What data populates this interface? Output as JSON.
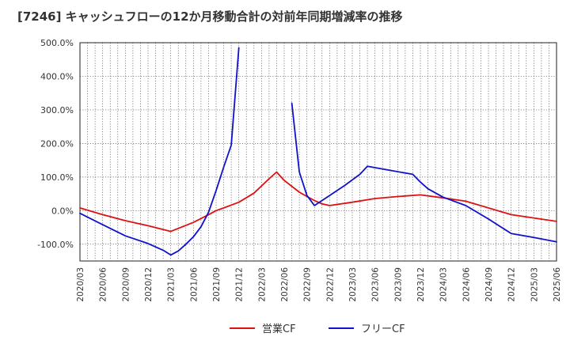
{
  "chart_data": {
    "type": "line",
    "title": "[7246]  キャッシュフローの12か月移動合計の対前年同期増減率の推移",
    "xlabel": "",
    "ylabel": "",
    "ylim": [
      -150,
      500
    ],
    "yticks": [
      -100,
      0,
      100,
      200,
      300,
      400,
      500
    ],
    "ytick_labels": [
      "-100.0%",
      "0.0%",
      "100.0%",
      "200.0%",
      "300.0%",
      "400.0%",
      "500.0%"
    ],
    "x_ticks": [
      "2020/03",
      "2020/06",
      "2020/09",
      "2020/12",
      "2021/03",
      "2021/06",
      "2021/09",
      "2021/12",
      "2022/03",
      "2022/06",
      "2022/09",
      "2022/12",
      "2023/03",
      "2023/06",
      "2023/09",
      "2023/12",
      "2024/03",
      "2024/06",
      "2024/09",
      "2024/12",
      "2025/03",
      "2025/06"
    ],
    "x_range": [
      0,
      63
    ],
    "grid": true,
    "series": [
      {
        "name": "営業CF",
        "color": "#dd1111",
        "points": [
          [
            0,
            8
          ],
          [
            3,
            -12
          ],
          [
            6,
            -30
          ],
          [
            9,
            -45
          ],
          [
            12,
            -62
          ],
          [
            15,
            -35
          ],
          [
            17,
            -12
          ],
          [
            18,
            0
          ],
          [
            19,
            8
          ],
          [
            21,
            25
          ],
          [
            23,
            52
          ],
          [
            25,
            95
          ],
          [
            26,
            115
          ],
          [
            27,
            90
          ],
          [
            29,
            55
          ],
          [
            31,
            30
          ],
          [
            32,
            20
          ],
          [
            33,
            15
          ],
          [
            36,
            25
          ],
          [
            39,
            36
          ],
          [
            42,
            42
          ],
          [
            45,
            47
          ],
          [
            48,
            38
          ],
          [
            51,
            28
          ],
          [
            54,
            8
          ],
          [
            57,
            -12
          ],
          [
            60,
            -22
          ],
          [
            63,
            -32
          ]
        ]
      },
      {
        "name": "フリーCF",
        "color": "#1111cc",
        "points": [
          [
            0,
            -8
          ],
          [
            3,
            -42
          ],
          [
            6,
            -75
          ],
          [
            9,
            -98
          ],
          [
            11,
            -118
          ],
          [
            12,
            -132
          ],
          [
            13,
            -120
          ],
          [
            14,
            -100
          ],
          [
            15,
            -78
          ],
          [
            16,
            -48
          ],
          [
            17,
            -5
          ],
          [
            18,
            60
          ],
          [
            19,
            130
          ],
          [
            20,
            195
          ],
          [
            21,
            485
          ],
          null,
          [
            28,
            320
          ],
          [
            29,
            115
          ],
          [
            30,
            45
          ],
          [
            31,
            15
          ],
          [
            33,
            45
          ],
          [
            35,
            75
          ],
          [
            37,
            108
          ],
          [
            38,
            132
          ],
          [
            41,
            120
          ],
          [
            44,
            108
          ],
          [
            45,
            85
          ],
          [
            46,
            65
          ],
          [
            48,
            40
          ],
          [
            51,
            15
          ],
          [
            54,
            -25
          ],
          [
            57,
            -68
          ],
          [
            60,
            -80
          ],
          [
            63,
            -93
          ]
        ]
      }
    ],
    "legend": {
      "position": "bottom-center",
      "items": [
        {
          "label": "営業CF",
          "color": "#dd1111"
        },
        {
          "label": "フリーCF",
          "color": "#1111cc"
        }
      ]
    }
  }
}
